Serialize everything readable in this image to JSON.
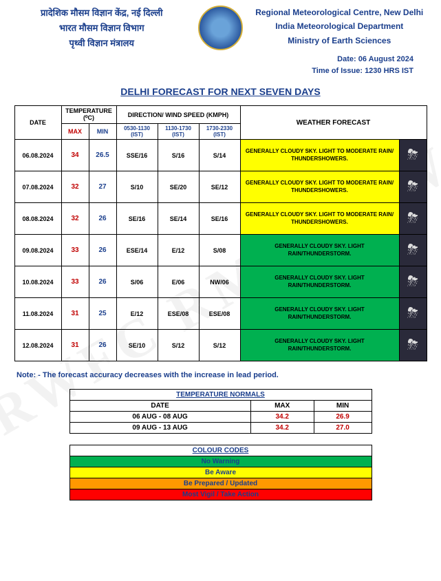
{
  "header": {
    "left_line1": "प्रादेशिक मौसम विज्ञान केंद्र, नई दिल्ली",
    "left_line2": "भारत मौसम विज्ञान विभाग",
    "left_line3": "पृथ्वी विज्ञान मंत्रालय",
    "right_line1": "Regional Meteorological Centre, New Delhi",
    "right_line2": "India Meteorological Department",
    "right_line3": "Ministry of Earth Sciences"
  },
  "date_block": {
    "date": "Date: 06 August 2024",
    "time": "Time of Issue: 1230 HRS IST"
  },
  "title": "DELHI FORECAST FOR NEXT SEVEN DAYS",
  "table_headers": {
    "date": "DATE",
    "temp": "TEMPERATURE (⁰C)",
    "max": "MAX",
    "min": "MIN",
    "wind": "DIRECTION/ WIND SPEED (KMPH)",
    "w1": "0530-1130 (IST)",
    "w2": "1130-1730 (IST)",
    "w3": "1730-2330 (IST)",
    "wf": "WEATHER FORECAST"
  },
  "rows": [
    {
      "date": "06.08.2024",
      "max": "34",
      "min": "26.5",
      "w1": "SSE/16",
      "w2": "S/16",
      "w3": "S/14",
      "wf": "GENERALLY CLOUDY SKY. LIGHT TO MODERATE RAIN/ THUNDERSHOWERS.",
      "color": "yellow"
    },
    {
      "date": "07.08.2024",
      "max": "32",
      "min": "27",
      "w1": "S/10",
      "w2": "SE/20",
      "w3": "SE/12",
      "wf": "GENERALLY CLOUDY SKY. LIGHT TO MODERATE RAIN/ THUNDERSHOWERS.",
      "color": "yellow"
    },
    {
      "date": "08.08.2024",
      "max": "32",
      "min": "26",
      "w1": "SE/16",
      "w2": "SE/14",
      "w3": "SE/16",
      "wf": "GENERALLY CLOUDY SKY. LIGHT TO MODERATE RAIN/ THUNDERSHOWERS.",
      "color": "yellow"
    },
    {
      "date": "09.08.2024",
      "max": "33",
      "min": "26",
      "w1": "ESE/14",
      "w2": "E/12",
      "w3": "S/08",
      "wf": "GENERALLY CLOUDY SKY. LIGHT RAIN/THUNDERSTORM.",
      "color": "green"
    },
    {
      "date": "10.08.2024",
      "max": "33",
      "min": "26",
      "w1": "S/06",
      "w2": "E/06",
      "w3": "NW/06",
      "wf": "GENERALLY CLOUDY SKY. LIGHT RAIN/THUNDERSTORM.",
      "color": "green"
    },
    {
      "date": "11.08.2024",
      "max": "31",
      "min": "25",
      "w1": "E/12",
      "w2": "ESE/08",
      "w3": "ESE/08",
      "wf": "GENERALLY CLOUDY SKY. LIGHT RAIN/THUNDERSTORM.",
      "color": "green"
    },
    {
      "date": "12.08.2024",
      "max": "31",
      "min": "26",
      "w1": "SE/10",
      "w2": "S/12",
      "w3": "S/12",
      "wf": "GENERALLY CLOUDY SKY. LIGHT RAIN/THUNDERSTORM.",
      "color": "green"
    }
  ],
  "note": "Note: - The forecast accuracy decreases with the increase in lead period.",
  "normals": {
    "title": "TEMPERATURE NORMALS",
    "headers": {
      "date": "DATE",
      "max": "MAX",
      "min": "MIN"
    },
    "rows": [
      {
        "date": "06 AUG - 08 AUG",
        "max": "34.2",
        "min": "26.9"
      },
      {
        "date": "09 AUG - 13 AUG",
        "max": "34.2",
        "min": "27.0"
      }
    ]
  },
  "codes": {
    "title": "COLOUR CODES",
    "items": [
      {
        "label": "No Warning",
        "class": "code-green"
      },
      {
        "label": "Be Aware",
        "class": "code-yellow"
      },
      {
        "label": "Be Prepared / Updated",
        "class": "code-orange"
      },
      {
        "label": "Most Vigil / Take Action",
        "class": "code-red"
      }
    ]
  },
  "watermark": "RWFC RMC NEW"
}
